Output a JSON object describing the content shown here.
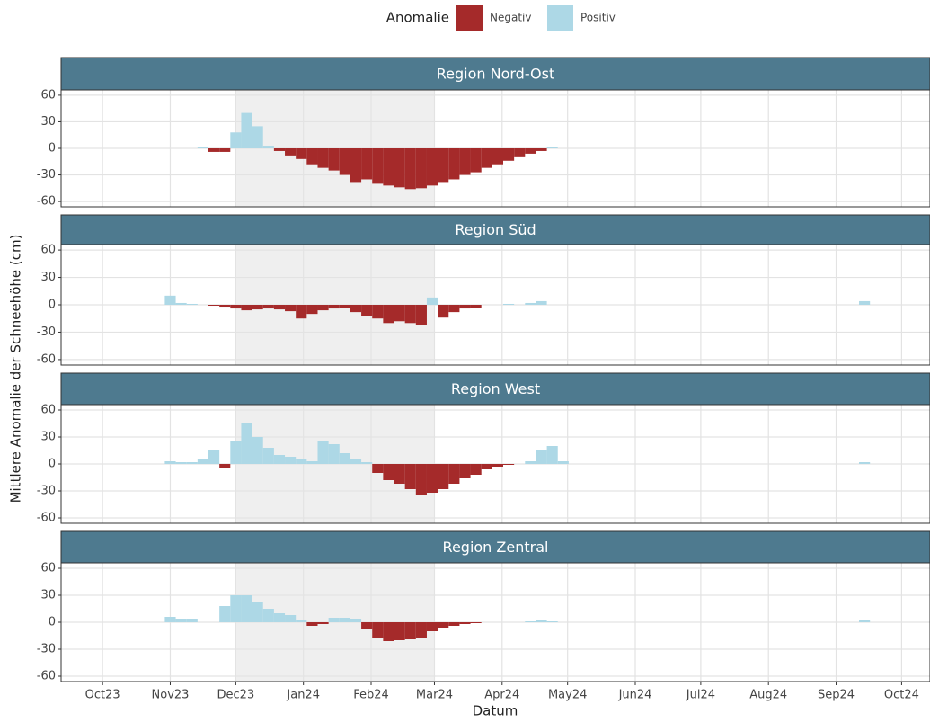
{
  "chart_data": {
    "type": "bar",
    "xlabel": "Datum",
    "ylabel": "Mittlere Anomalie der Schneehöhe (cm)",
    "legend": {
      "title": "Anomalie",
      "position": "top",
      "entries": [
        {
          "name": "Negativ",
          "color": "#a52a2a"
        },
        {
          "name": "Positiv",
          "color": "#add8e6"
        }
      ]
    },
    "shade": [
      "2023-12-01",
      "2024-03-01"
    ],
    "bar_days": 5,
    "xlim": [
      "2023-09-12",
      "2024-10-14"
    ],
    "xticks": [
      {
        "value": "2023-10-01",
        "label": "Oct23"
      },
      {
        "value": "2023-11-01",
        "label": "Nov23"
      },
      {
        "value": "2023-12-01",
        "label": "Dec23"
      },
      {
        "value": "2024-01-01",
        "label": "Jan24"
      },
      {
        "value": "2024-02-01",
        "label": "Feb24"
      },
      {
        "value": "2024-03-01",
        "label": "Mar24"
      },
      {
        "value": "2024-04-01",
        "label": "Apr24"
      },
      {
        "value": "2024-05-01",
        "label": "May24"
      },
      {
        "value": "2024-06-01",
        "label": "Jun24"
      },
      {
        "value": "2024-07-01",
        "label": "Jul24"
      },
      {
        "value": "2024-08-01",
        "label": "Aug24"
      },
      {
        "value": "2024-09-01",
        "label": "Sep24"
      },
      {
        "value": "2024-10-01",
        "label": "Oct24"
      }
    ],
    "ylim": [
      -66,
      66
    ],
    "yticks": [
      -60,
      -30,
      0,
      30,
      60
    ],
    "grid": true,
    "x": [
      "2023-11-01",
      "2023-11-06",
      "2023-11-11",
      "2023-11-16",
      "2023-11-21",
      "2023-11-26",
      "2023-12-01",
      "2023-12-06",
      "2023-12-11",
      "2023-12-16",
      "2023-12-21",
      "2023-12-26",
      "2023-12-31",
      "2024-01-05",
      "2024-01-10",
      "2024-01-15",
      "2024-01-20",
      "2024-01-25",
      "2024-01-30",
      "2024-02-04",
      "2024-02-09",
      "2024-02-14",
      "2024-02-19",
      "2024-02-24",
      "2024-02-29",
      "2024-03-05",
      "2024-03-10",
      "2024-03-15",
      "2024-03-20",
      "2024-03-25",
      "2024-03-30",
      "2024-04-04",
      "2024-04-09",
      "2024-04-14",
      "2024-04-19",
      "2024-04-24",
      "2024-04-29",
      "2024-09-14"
    ],
    "panels": [
      {
        "title": "Region Nord-Ost",
        "values": [
          0,
          0,
          0,
          1,
          -4,
          -4,
          18,
          40,
          25,
          3,
          -3,
          -8,
          -12,
          -18,
          -22,
          -25,
          -30,
          -38,
          -35,
          -40,
          -42,
          -44,
          -46,
          -45,
          -42,
          -38,
          -35,
          -30,
          -27,
          -22,
          -18,
          -14,
          -10,
          -6,
          -3,
          2,
          0,
          0
        ]
      },
      {
        "title": "Region Süd",
        "values": [
          10,
          2,
          1,
          0,
          -1,
          -2,
          -4,
          -6,
          -5,
          -4,
          -5,
          -7,
          -15,
          -10,
          -6,
          -4,
          -3,
          -8,
          -12,
          -15,
          -20,
          -18,
          -20,
          -22,
          8,
          -14,
          -8,
          -4,
          -3,
          0,
          0,
          1,
          0,
          2,
          4,
          0,
          0,
          4
        ]
      },
      {
        "title": "Region West",
        "values": [
          3,
          2,
          2,
          5,
          15,
          -4,
          25,
          45,
          30,
          18,
          10,
          8,
          5,
          3,
          25,
          22,
          12,
          5,
          2,
          -10,
          -18,
          -22,
          -28,
          -34,
          -32,
          -28,
          -22,
          -16,
          -12,
          -6,
          -3,
          -1,
          0,
          3,
          15,
          20,
          3,
          2
        ]
      },
      {
        "title": "Region Zentral",
        "values": [
          6,
          4,
          3,
          0,
          0,
          18,
          30,
          30,
          22,
          15,
          10,
          8,
          2,
          -4,
          -2,
          5,
          5,
          3,
          -8,
          -18,
          -21,
          -20,
          -19,
          -18,
          -10,
          -6,
          -4,
          -2,
          -1,
          0,
          0,
          0,
          0,
          1,
          2,
          1,
          0,
          2
        ]
      }
    ]
  }
}
